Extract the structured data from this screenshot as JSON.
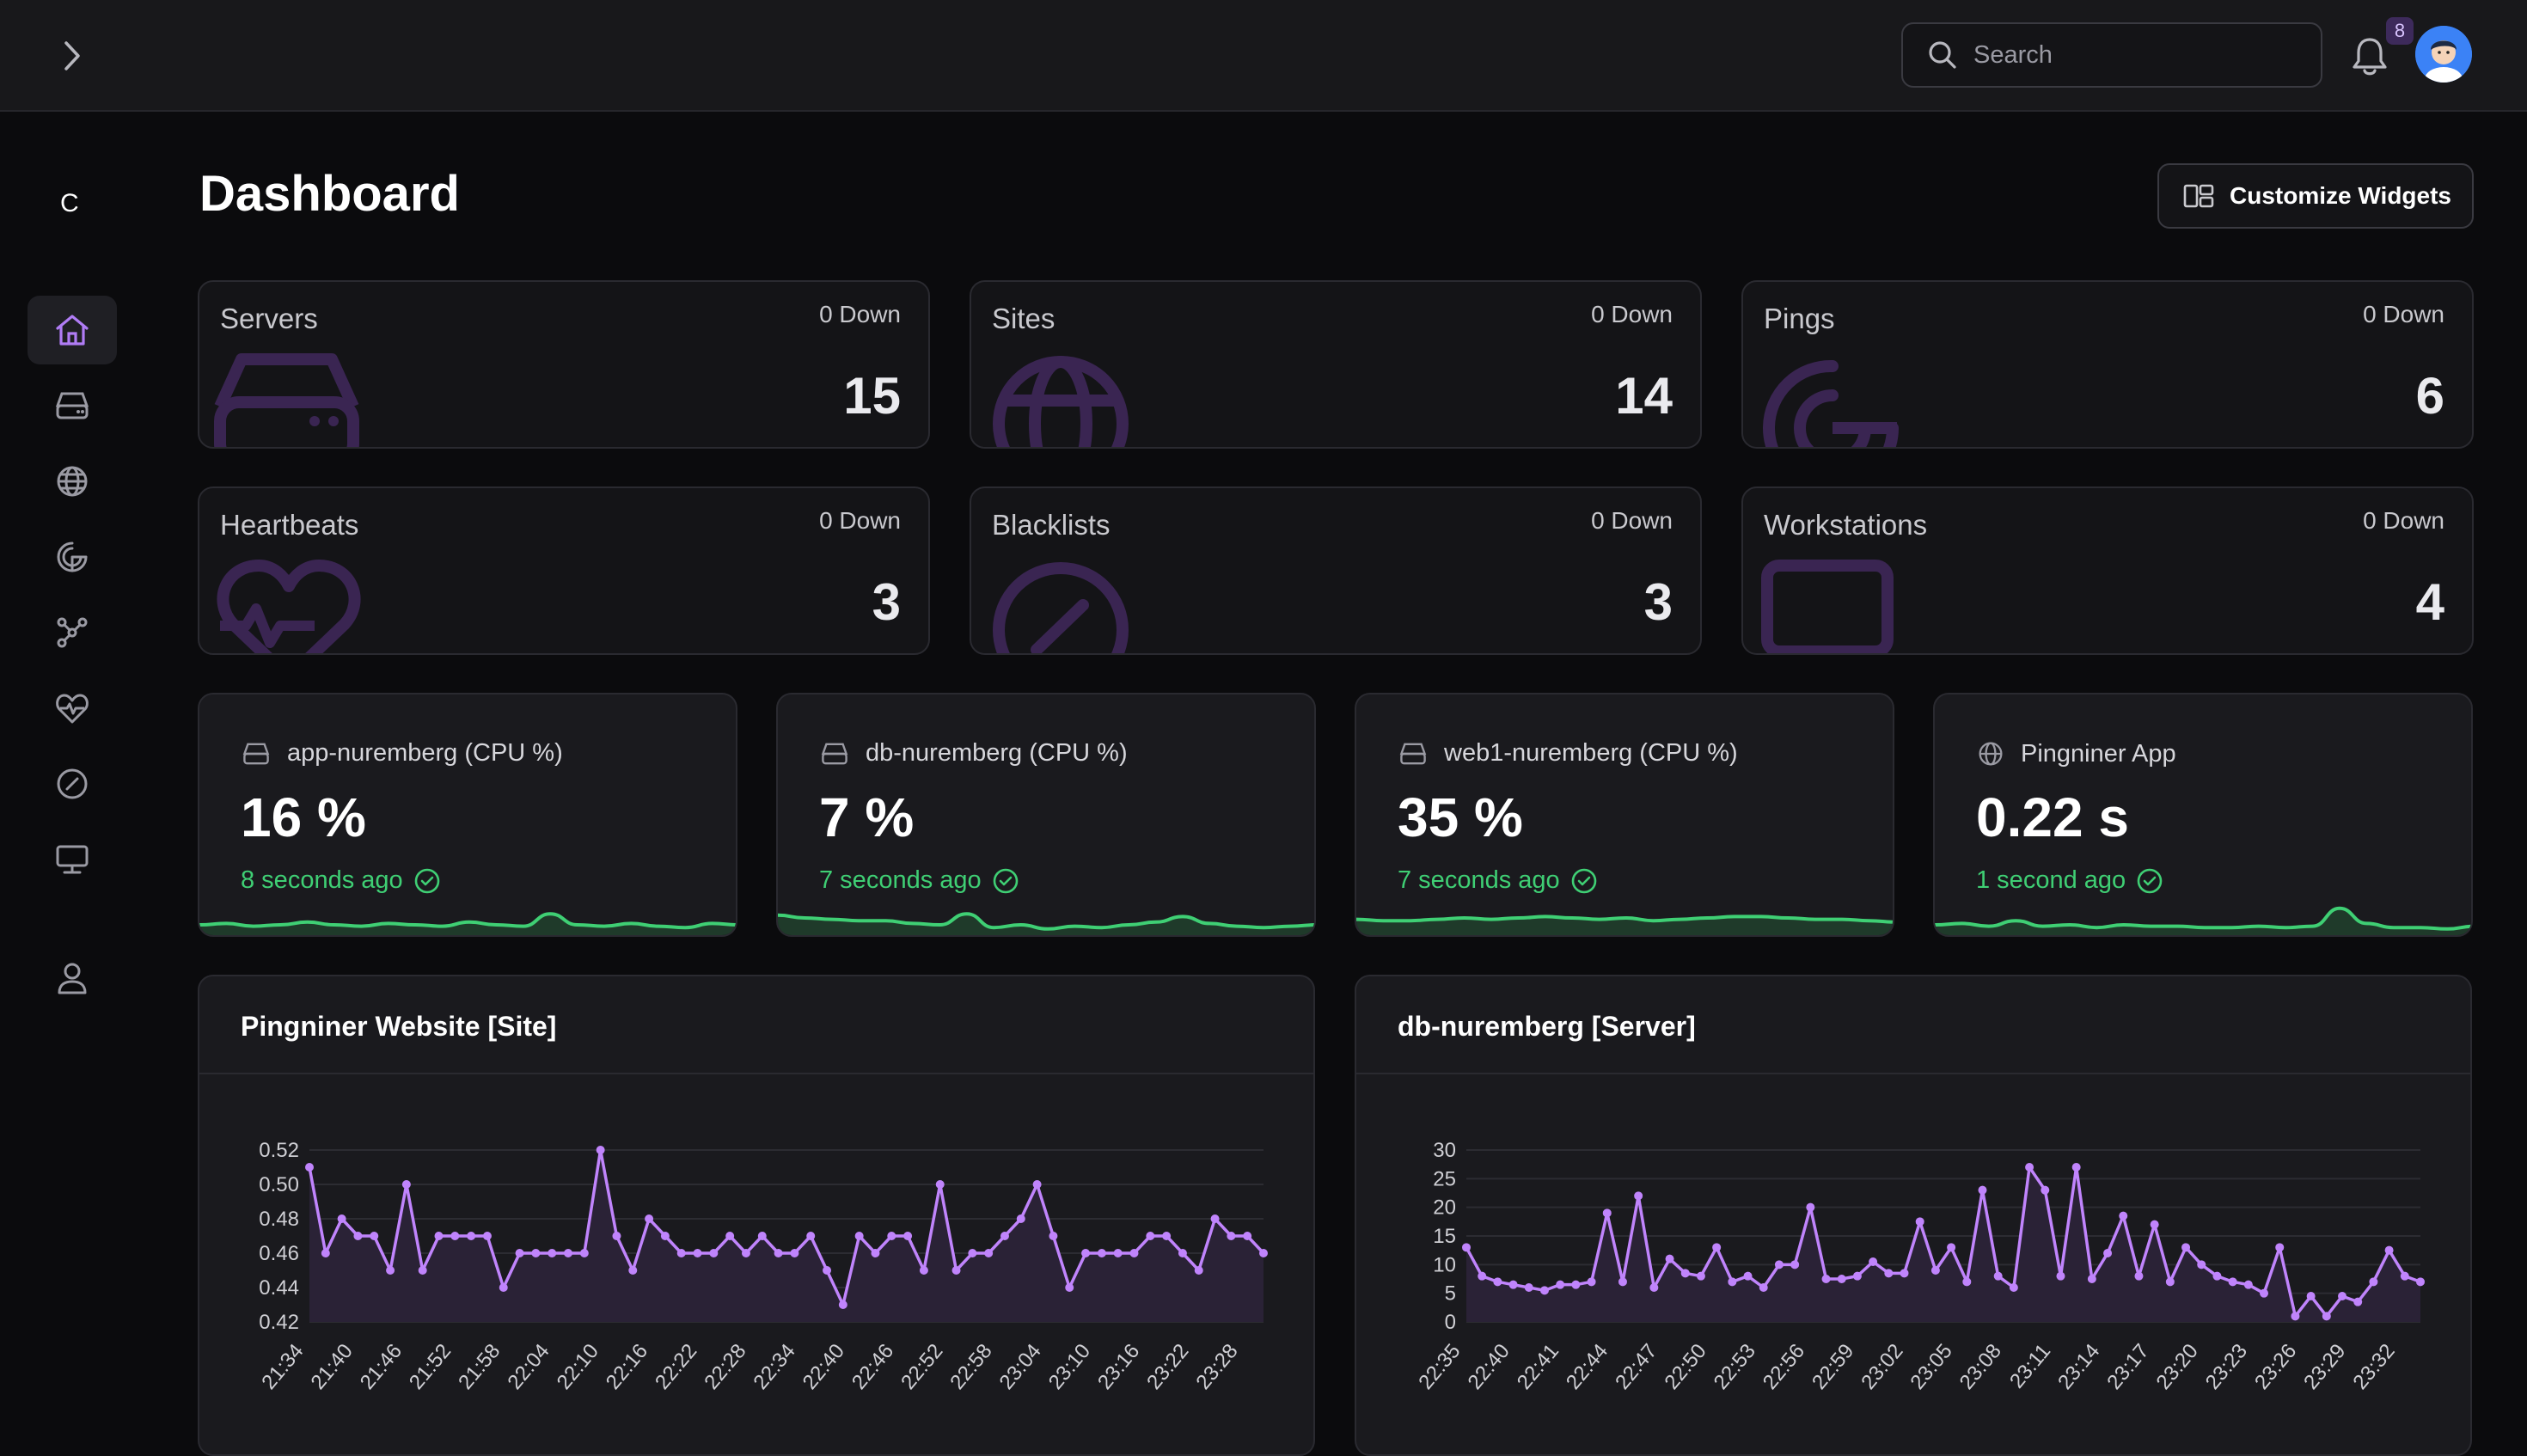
{
  "search": {
    "placeholder": "Search"
  },
  "notifications": {
    "count": "8"
  },
  "sidebar": {
    "logo": "C",
    "items": [
      {
        "icon": "home-icon",
        "active": true
      },
      {
        "icon": "server-icon"
      },
      {
        "icon": "globe-icon"
      },
      {
        "icon": "ping-icon"
      },
      {
        "icon": "network-icon"
      },
      {
        "icon": "heartbeat-icon"
      },
      {
        "icon": "blacklist-icon"
      },
      {
        "icon": "workstation-icon"
      },
      {
        "icon": "user-icon"
      }
    ]
  },
  "header": {
    "title": "Dashboard",
    "customize_label": "Customize Widgets"
  },
  "stats": [
    {
      "label": "Servers",
      "down": "0 Down",
      "count": "15",
      "icon": "server-icon"
    },
    {
      "label": "Sites",
      "down": "0 Down",
      "count": "14",
      "icon": "globe-icon"
    },
    {
      "label": "Pings",
      "down": "0 Down",
      "count": "6",
      "icon": "ping-icon"
    },
    {
      "label": "Heartbeats",
      "down": "0 Down",
      "count": "3",
      "icon": "heartbeat-icon"
    },
    {
      "label": "Blacklists",
      "down": "0 Down",
      "count": "3",
      "icon": "blacklist-icon"
    },
    {
      "label": "Workstations",
      "down": "0 Down",
      "count": "4",
      "icon": "workstation-icon"
    }
  ],
  "monitors": [
    {
      "name": "app-nuremberg (CPU %)",
      "value": "16 %",
      "ago": "8 seconds ago",
      "icon": "server-icon",
      "spark": [
        5,
        6,
        4,
        5,
        7,
        5,
        4,
        6,
        5,
        4,
        7,
        5,
        4,
        13,
        5,
        4,
        6,
        4,
        3,
        6,
        5
      ]
    },
    {
      "name": "db-nuremberg (CPU %)",
      "value": "7 %",
      "ago": "7 seconds ago",
      "icon": "server-icon",
      "spark": [
        12,
        10,
        9,
        8,
        8,
        6,
        5,
        13,
        3,
        5,
        2,
        4,
        3,
        5,
        7,
        11,
        6,
        4,
        3,
        4,
        5
      ]
    },
    {
      "name": "web1-nuremberg (CPU %)",
      "value": "35 %",
      "ago": "7 seconds ago",
      "icon": "server-icon",
      "spark": [
        9,
        8,
        8,
        9,
        10,
        9,
        10,
        11,
        10,
        9,
        10,
        8,
        9,
        10,
        11,
        11,
        10,
        9,
        9,
        8,
        7
      ]
    },
    {
      "name": "Pingniner App",
      "value": "0.22 s",
      "ago": "1 second ago",
      "icon": "globe-icon",
      "spark": [
        5,
        6,
        4,
        8,
        4,
        5,
        3,
        5,
        4,
        4,
        3,
        3,
        4,
        3,
        4,
        17,
        6,
        3,
        3,
        2,
        4
      ]
    }
  ],
  "panels": [
    {
      "title": "Pingniner Website [Site]"
    },
    {
      "title": "db-nuremberg [Server]"
    }
  ],
  "chart_data": [
    {
      "type": "area",
      "title": "Pingniner Website [Site]",
      "ylim": [
        0.42,
        0.52
      ],
      "yticks": [
        "0.52",
        "0.50",
        "0.48",
        "0.46",
        "0.44",
        "0.42"
      ],
      "xticks": [
        "21:34",
        "21:40",
        "21:46",
        "21:52",
        "21:58",
        "22:04",
        "22:10",
        "22:16",
        "22:22",
        "22:28",
        "22:34",
        "22:40",
        "22:46",
        "22:52",
        "22:58",
        "23:04",
        "23:10",
        "23:16",
        "23:22",
        "23:28"
      ],
      "series": [
        {
          "values": [
            0.51,
            0.46,
            0.48,
            0.47,
            0.47,
            0.45,
            0.5,
            0.45,
            0.47,
            0.47,
            0.47,
            0.47,
            0.44,
            0.46,
            0.46,
            0.46,
            0.46,
            0.46,
            0.52,
            0.47,
            0.45,
            0.48,
            0.47,
            0.46,
            0.46,
            0.46,
            0.47,
            0.46,
            0.47,
            0.46,
            0.46,
            0.47,
            0.45,
            0.43,
            0.47,
            0.46,
            0.47,
            0.47,
            0.45,
            0.5,
            0.45,
            0.46,
            0.46,
            0.47,
            0.48,
            0.5,
            0.47,
            0.44,
            0.46,
            0.46,
            0.46,
            0.46,
            0.47,
            0.47,
            0.46,
            0.45,
            0.48,
            0.47,
            0.47,
            0.46
          ]
        }
      ],
      "grid": true
    },
    {
      "type": "area",
      "title": "db-nuremberg [Server]",
      "ylim": [
        0,
        30
      ],
      "yticks": [
        "30",
        "25",
        "20",
        "15",
        "10",
        "5",
        "0"
      ],
      "xticks": [
        "22:35",
        "22:40",
        "22:41",
        "22:44",
        "22:47",
        "22:50",
        "22:53",
        "22:56",
        "22:59",
        "23:02",
        "23:05",
        "23:08",
        "23:11",
        "23:14",
        "23:17",
        "23:20",
        "23:23",
        "23:26",
        "23:29",
        "23:32"
      ],
      "series": [
        {
          "values": [
            13,
            8,
            7,
            6.5,
            6,
            5.5,
            6.5,
            6.5,
            7,
            19,
            7,
            22,
            6,
            11,
            8.5,
            8,
            13,
            7,
            8,
            6,
            10,
            10,
            20,
            7.5,
            7.5,
            8,
            10.5,
            8.5,
            8.5,
            17.5,
            9,
            13,
            7,
            23,
            8,
            6,
            27,
            23,
            8,
            27,
            7.5,
            12,
            18.5,
            8,
            17,
            7,
            13,
            10,
            8,
            7,
            6.5,
            5,
            13,
            1,
            4.5,
            1,
            4.5,
            3.5,
            7,
            12.5,
            8,
            7
          ]
        }
      ],
      "grid": true
    }
  ]
}
